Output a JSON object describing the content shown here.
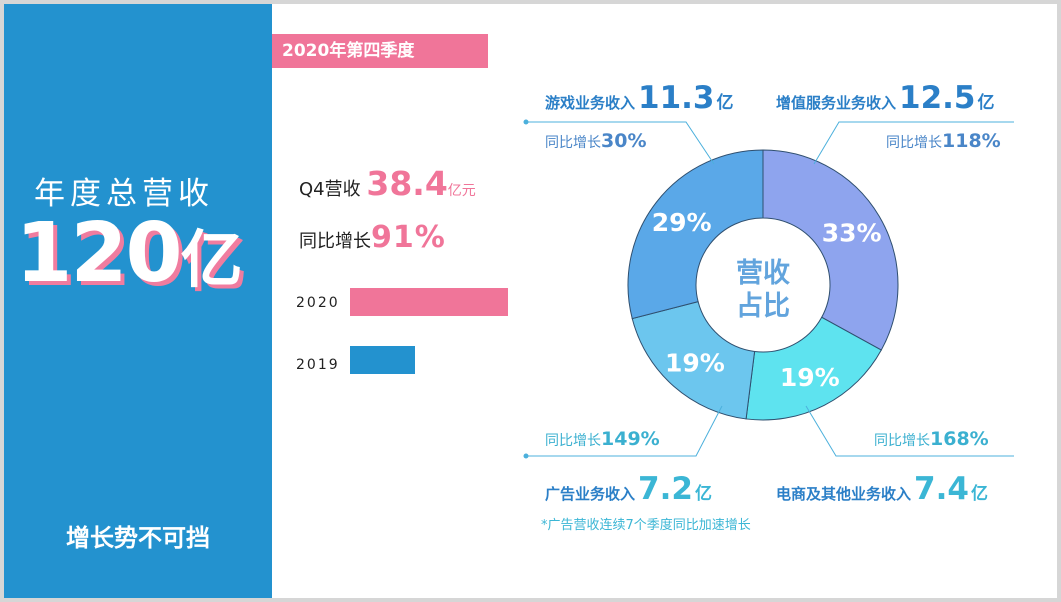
{
  "colors": {
    "blue_panel": "#2392cf",
    "pink": "#f07599",
    "games": "#5aa8e8",
    "vas": "#8ea4ee",
    "ecommerce": "#5ee3ef",
    "ads": "#6cc6ee",
    "leader_blue": "#4cb0dc"
  },
  "left_panel": {
    "title": "年度总营收",
    "big_number": "120",
    "big_unit": "亿",
    "slogan": "增长势不可挡"
  },
  "quarter_tag": "2020年第四季度",
  "q4": {
    "label": "Q4营收",
    "value": "38.4",
    "unit": "亿元",
    "yoy_label": "同比增长",
    "yoy_value": "91%"
  },
  "comparison_bars": [
    {
      "year": "2020",
      "relative_value": 1.0,
      "color": "#f07599"
    },
    {
      "year": "2019",
      "relative_value": 0.41,
      "color": "#2392cf"
    }
  ],
  "chart_data": {
    "type": "pie",
    "title": "",
    "center_label": [
      "营收",
      "占比"
    ],
    "slices": [
      {
        "name": "增值服务业务收入",
        "revenue_label": "12.5",
        "unit": "亿",
        "share": 33,
        "share_label": "33%",
        "growth_label": "同比增长",
        "growth": "118%",
        "color": "#8ea4ee"
      },
      {
        "name": "电商及其他业务收入",
        "revenue_label": "7.4",
        "unit": "亿",
        "share": 19,
        "share_label": "19%",
        "growth_label": "同比增长",
        "growth": "168%",
        "color": "#5ee3ef"
      },
      {
        "name": "广告业务收入",
        "revenue_label": "7.2",
        "unit": "亿",
        "share": 19,
        "share_label": "19%",
        "growth_label": "同比增长",
        "growth": "149%",
        "color": "#6cc6ee"
      },
      {
        "name": "游戏业务收入",
        "revenue_label": "11.3",
        "unit": "亿",
        "share": 29,
        "share_label": "29%",
        "growth_label": "同比增长",
        "growth": "30%",
        "color": "#5aa8e8"
      }
    ]
  },
  "note": "*广告营收连续7个季度同比加速增长"
}
